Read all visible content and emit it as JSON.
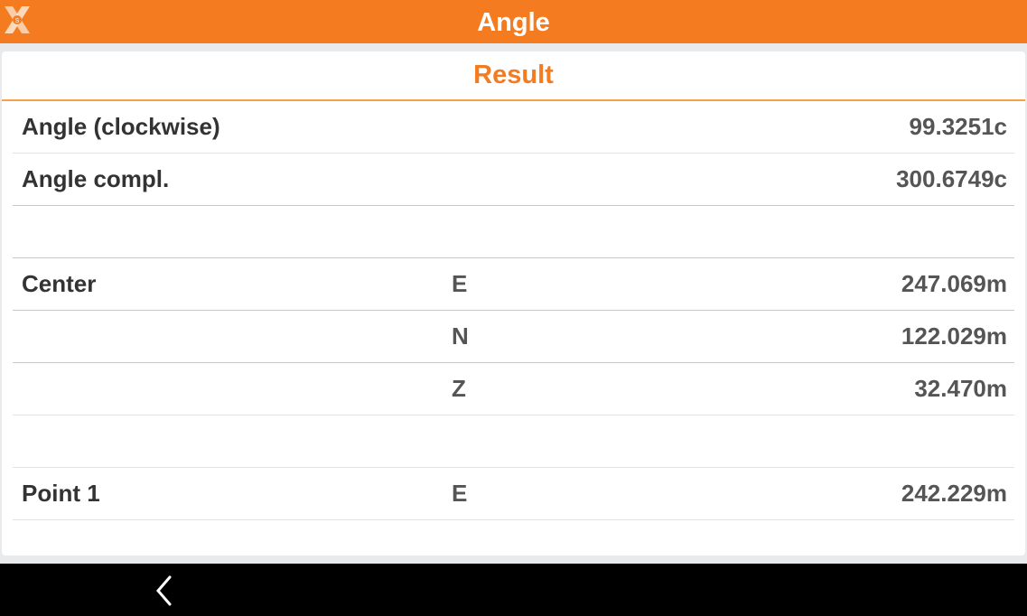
{
  "header": {
    "title": "Angle",
    "logo_icon": "xs-logo-icon",
    "color": "#f47b20"
  },
  "card": {
    "title": "Result",
    "rows": [
      {
        "label": "Angle (clockwise)",
        "axis": "",
        "value": "99.3251c"
      },
      {
        "label": "Angle compl.",
        "axis": "",
        "value": "300.6749c"
      },
      {
        "label": "",
        "axis": "",
        "value": ""
      },
      {
        "label": "Center",
        "axis": "E",
        "value": "247.069m"
      },
      {
        "label": "",
        "axis": "N",
        "value": "122.029m"
      },
      {
        "label": "",
        "axis": "Z",
        "value": "32.470m"
      },
      {
        "label": "",
        "axis": "",
        "value": ""
      },
      {
        "label": "Point 1",
        "axis": "E",
        "value": "242.229m"
      }
    ]
  },
  "navbar": {
    "back_icon": "chevron-left-icon"
  }
}
